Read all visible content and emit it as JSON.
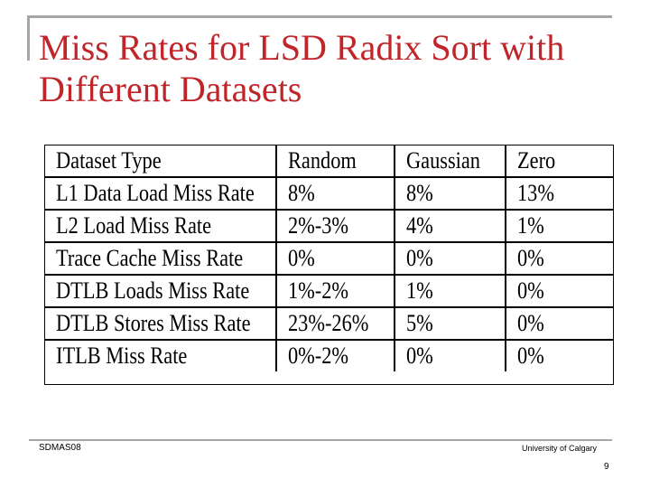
{
  "slide": {
    "title_line1": "Miss Rates for LSD Radix Sort with",
    "title_line2": "Different Datasets",
    "accent_color": "#c0252a"
  },
  "table": {
    "headers": [
      "Dataset Type",
      "Random",
      "Gaussian",
      "Zero"
    ],
    "rows": [
      [
        "L1 Data Load Miss Rate",
        "8%",
        "8%",
        "13%"
      ],
      [
        "L2 Load Miss Rate",
        "2%-3%",
        "4%",
        "1%"
      ],
      [
        "Trace Cache Miss Rate",
        "0%",
        "0%",
        "0%"
      ],
      [
        "DTLB Loads Miss Rate",
        "1%-2%",
        "1%",
        "0%"
      ],
      [
        "DTLB Stores Miss Rate",
        "23%-26%",
        "5%",
        "0%"
      ],
      [
        "ITLB Miss Rate",
        "0%-2%",
        "0%",
        "0%"
      ]
    ]
  },
  "footer": {
    "left": "SDMAS08",
    "right": "University of Calgary",
    "page": "9"
  }
}
